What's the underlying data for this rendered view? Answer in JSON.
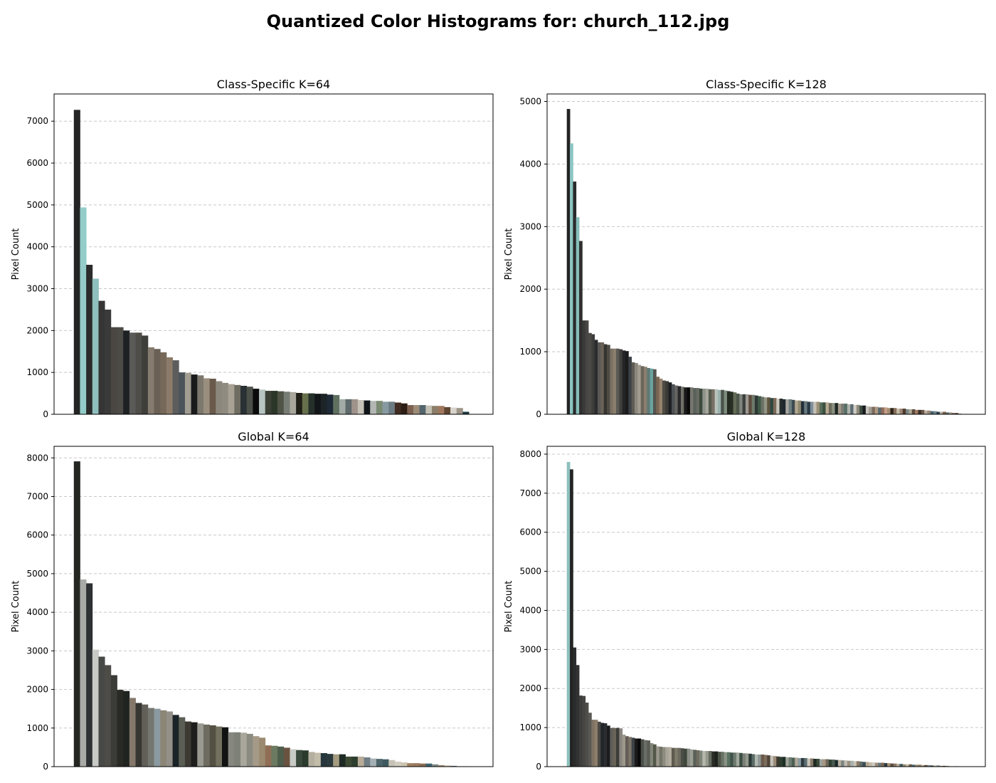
{
  "figure": {
    "title": "Quantized Color Histograms for: church_112.jpg"
  },
  "chart_data": [
    {
      "type": "bar",
      "title": "Class-Specific K=64",
      "ylabel": "Pixel Count",
      "xlabel": "",
      "ylim": [
        0,
        7650
      ],
      "yticks": [
        0,
        1000,
        2000,
        3000,
        4000,
        5000,
        6000,
        7000
      ],
      "grid": "y-dashed",
      "values": [
        7270,
        4940,
        3570,
        3240,
        2710,
        2500,
        2080,
        2080,
        2000,
        1950,
        1950,
        1880,
        1600,
        1560,
        1480,
        1360,
        1290,
        1000,
        990,
        950,
        930,
        860,
        850,
        790,
        750,
        720,
        700,
        680,
        660,
        610,
        590,
        560,
        560,
        550,
        540,
        530,
        510,
        500,
        500,
        490,
        490,
        470,
        460,
        360,
        360,
        360,
        340,
        330,
        320,
        320,
        300,
        300,
        280,
        260,
        220,
        220,
        220,
        210,
        200,
        200,
        170,
        160,
        150,
        60
      ],
      "colors": [
        "#242424",
        "#93ccc9",
        "#2b2b2b",
        "#8fc0bd",
        "#353535",
        "#3a3a3a",
        "#4a4743",
        "#4d4b46",
        "#1e2124",
        "#5a5a58",
        "#4f4d48",
        "#3e3e3b",
        "#857b6e",
        "#6b6055",
        "#76695a",
        "#8c7b68",
        "#5c5d5c",
        "#4c545b",
        "#a29d92",
        "#1a1a1a",
        "#7c786e",
        "#9a8e7e",
        "#6a5a4b",
        "#8c877c",
        "#8f8b80",
        "#a7a294",
        "#6f6c62",
        "#2a3134",
        "#4b5048",
        "#0b0b0b",
        "#b7c4c1",
        "#3b3f36",
        "#2c3628",
        "#4f5447",
        "#777d74",
        "#a9a69c",
        "#212018",
        "#67704c",
        "#26302a",
        "#131618",
        "#1c2428",
        "#1e2a36",
        "#5f7060",
        "#a2aba6",
        "#5f6a6c",
        "#9f938c",
        "#c6c2b8",
        "#0f1418",
        "#b3b7b3",
        "#7b8b73",
        "#879aa1",
        "#6c7b82",
        "#3f2c22",
        "#2c1e16",
        "#7c6050",
        "#9c8c78",
        "#54666c",
        "#c4c0b4",
        "#8c7e6a",
        "#a0785e",
        "#5e4632",
        "#d8d4cc",
        "#9e9588",
        "#1c3a40"
      ]
    },
    {
      "type": "bar",
      "title": "Class-Specific K=128",
      "ylabel": "Pixel Count",
      "xlabel": "",
      "ylim": [
        0,
        5120
      ],
      "yticks": [
        0,
        1000,
        2000,
        3000,
        4000,
        5000
      ],
      "grid": "y-dashed",
      "values": [
        4880,
        4330,
        3720,
        3150,
        2770,
        1500,
        1500,
        1300,
        1280,
        1190,
        1150,
        1150,
        1120,
        1110,
        1050,
        1050,
        1050,
        1040,
        1020,
        1010,
        920,
        830,
        820,
        790,
        770,
        760,
        740,
        730,
        720,
        600,
        570,
        540,
        530,
        510,
        480,
        460,
        450,
        440,
        430,
        430,
        430,
        420,
        420,
        410,
        410,
        410,
        400,
        400,
        400,
        390,
        390,
        380,
        370,
        360,
        350,
        330,
        320,
        320,
        320,
        310,
        310,
        300,
        290,
        280,
        270,
        270,
        260,
        260,
        250,
        250,
        240,
        240,
        240,
        230,
        220,
        220,
        210,
        210,
        200,
        200,
        200,
        200,
        190,
        190,
        190,
        180,
        180,
        180,
        170,
        170,
        170,
        160,
        160,
        150,
        150,
        140,
        140,
        130,
        120,
        120,
        120,
        110,
        110,
        110,
        100,
        100,
        100,
        90,
        90,
        90,
        80,
        80,
        80,
        70,
        70,
        70,
        60,
        60,
        50,
        50,
        40,
        40,
        40,
        30,
        30,
        20,
        20,
        10
      ],
      "colors": [
        "#232323",
        "#8cc6c2",
        "#2a2a2a",
        "#86bdb9",
        "#2f2f2f",
        "#3a3a3a",
        "#474644",
        "#4b4a46",
        "#3d3d3b",
        "#2b2c2e",
        "#5a5855",
        "#6b6257",
        "#36342f",
        "#4e4b45",
        "#7b7163",
        "#8a7e6d",
        "#5b5a56",
        "#413f3b",
        "#232527",
        "#1b1b1b",
        "#3c4146",
        "#5e5b54",
        "#8c877c",
        "#a29c90",
        "#6c655c",
        "#8b7e6d",
        "#5f7a76",
        "#6aa3a0",
        "#55544f",
        "#7a6652",
        "#96846f",
        "#4f4a44",
        "#3a3a36",
        "#1d2022",
        "#4d5154",
        "#646460",
        "#29282a",
        "#707068",
        "#1a1a1a",
        "#0a0a0a",
        "#77776f",
        "#5a615a",
        "#676b64",
        "#3d4a3c",
        "#8c928a",
        "#a6a79c",
        "#565b50",
        "#777065",
        "#bac2bd",
        "#9ab1ad",
        "#4a524a",
        "#7e8c7f",
        "#232a20",
        "#292f24",
        "#646c57",
        "#4d564a",
        "#7f857c",
        "#3c3f3e",
        "#9b9890",
        "#5c4a3c",
        "#6d7a6a",
        "#2e3936",
        "#3f5b46",
        "#6c7266",
        "#929484",
        "#5e5440",
        "#2f4741",
        "#7b6a58",
        "#c9c6be",
        "#262e2c",
        "#1f2830",
        "#a8a69e",
        "#6e7e7e",
        "#3c4c52",
        "#b4a78f",
        "#8c8870",
        "#233039",
        "#687a80",
        "#2a3a44",
        "#7d8e9a",
        "#c5c0b4",
        "#9c9078",
        "#566e5a",
        "#3a5040",
        "#b8aa94",
        "#6b6a5a",
        "#8a9080",
        "#1c2824",
        "#a3988a",
        "#7a7c74",
        "#567068",
        "#b0b4ac",
        "#5c6c74",
        "#d0ccc2",
        "#8e8a7c",
        "#3c4a40",
        "#161c1e",
        "#c8c4bc",
        "#a09c94",
        "#7c6a5e",
        "#b09a84",
        "#5a6a70",
        "#8e6c58",
        "#c4a088",
        "#a48c74",
        "#2c2418",
        "#846e5c",
        "#c6bca8",
        "#9c8474",
        "#4e3a2c",
        "#7a8684",
        "#b0a898",
        "#5c4c40",
        "#a27c64",
        "#3c302a",
        "#6c5646",
        "#b8ac9c",
        "#9a8a7a",
        "#46606a",
        "#70848c",
        "#2a3c46",
        "#b4b0a8",
        "#7c5c48",
        "#5c6a6c",
        "#a0988c",
        "#6a564a",
        "#48362c",
        "#8a7c6c"
      ]
    },
    {
      "type": "bar",
      "title": "Global K=64",
      "ylabel": "Pixel Count",
      "xlabel": "",
      "ylim": [
        0,
        8300
      ],
      "yticks": [
        0,
        1000,
        2000,
        3000,
        4000,
        5000,
        6000,
        7000,
        8000
      ],
      "grid": "y-dashed",
      "values": [
        7910,
        4850,
        4750,
        3030,
        2850,
        2630,
        2370,
        1990,
        1960,
        1780,
        1650,
        1610,
        1520,
        1500,
        1460,
        1430,
        1340,
        1280,
        1170,
        1150,
        1120,
        1090,
        1070,
        1040,
        1020,
        890,
        890,
        880,
        850,
        790,
        750,
        550,
        540,
        520,
        490,
        450,
        430,
        420,
        380,
        360,
        350,
        330,
        320,
        320,
        260,
        260,
        260,
        240,
        210,
        200,
        190,
        170,
        130,
        110,
        90,
        90,
        80,
        80,
        60,
        40,
        30,
        20,
        10,
        10
      ],
      "colors": [
        "#242622",
        "#a7aaa6",
        "#2e3133",
        "#c7cac5",
        "#474946",
        "#4e4c47",
        "#3b3c38",
        "#292a26",
        "#202421",
        "#85786a",
        "#383630",
        "#615f58",
        "#74776f",
        "#8a9aa0",
        "#8c8677",
        "#939089",
        "#1a2428",
        "#5b5e55",
        "#3c3a33",
        "#1e1e1c",
        "#9a9a92",
        "#6e6c60",
        "#545043",
        "#73705f",
        "#111312",
        "#86877f",
        "#7d8178",
        "#a9a69b",
        "#8c8b81",
        "#a59a88",
        "#9b8a70",
        "#8f6e55",
        "#6b7a60",
        "#4e5e4c",
        "#6a5240",
        "#c8cbc6",
        "#3a4a3c",
        "#2a3a2c",
        "#b4b0a0",
        "#c2bda9",
        "#26363c",
        "#2c3a3e",
        "#a49b80",
        "#1e2a24",
        "#3c4a34",
        "#2e3e2e",
        "#b8ac98",
        "#707e86",
        "#a4b0b4",
        "#4c646a",
        "#3e5a60",
        "#c6c3b6",
        "#d0ccc0",
        "#cbc4b0",
        "#a08060",
        "#9a7a5e",
        "#8c6c50",
        "#3e6470",
        "#7c8a84",
        "#9c8c74",
        "#c0b8a4",
        "#5c6a6e",
        "#8e9c9a",
        "#b2a890"
      ]
    },
    {
      "type": "bar",
      "title": "Global K=128",
      "ylabel": "Pixel Count",
      "xlabel": "",
      "ylim": [
        0,
        8200
      ],
      "yticks": [
        0,
        1000,
        2000,
        3000,
        4000,
        5000,
        6000,
        7000,
        8000
      ],
      "grid": "y-dashed",
      "values": [
        7800,
        7610,
        3050,
        2600,
        1820,
        1810,
        1640,
        1380,
        1200,
        1200,
        1150,
        1120,
        1110,
        1050,
        990,
        990,
        990,
        980,
        820,
        780,
        760,
        740,
        720,
        720,
        700,
        680,
        670,
        600,
        570,
        520,
        510,
        500,
        500,
        500,
        480,
        480,
        480,
        470,
        460,
        460,
        440,
        430,
        420,
        410,
        400,
        400,
        400,
        390,
        390,
        380,
        380,
        370,
        370,
        360,
        360,
        360,
        350,
        340,
        340,
        330,
        320,
        310,
        310,
        310,
        300,
        290,
        280,
        270,
        260,
        250,
        250,
        240,
        240,
        230,
        230,
        220,
        220,
        220,
        210,
        210,
        200,
        200,
        190,
        190,
        190,
        180,
        180,
        170,
        170,
        160,
        160,
        150,
        150,
        140,
        140,
        130,
        120,
        120,
        110,
        110,
        100,
        100,
        100,
        90,
        90,
        80,
        80,
        70,
        70,
        60,
        60,
        60,
        50,
        50,
        50,
        40,
        40,
        40,
        30,
        30,
        30,
        20,
        20,
        20,
        10,
        10,
        10,
        5
      ],
      "colors": [
        "#8cc0bc",
        "#242424",
        "#2c2c2c",
        "#323232",
        "#3e3e3c",
        "#474543",
        "#4f4e4a",
        "#5a5955",
        "#7d7263",
        "#8c7e6b",
        "#4a4843",
        "#20252a",
        "#2c2d30",
        "#1b1c1e",
        "#5f5d58",
        "#6a6458",
        "#3c3c38",
        "#8a8580",
        "#9e988c",
        "#645e55",
        "#7c7468",
        "#3d4346",
        "#1a1a1a",
        "#0a0a0a",
        "#4c504a",
        "#6a6e68",
        "#585c52",
        "#80857a",
        "#535748",
        "#9a978c",
        "#727468",
        "#8d8a7e",
        "#a8a49a",
        "#b2ad9e",
        "#5e5a4e",
        "#7e7a6a",
        "#6c6a5e",
        "#4a4e46",
        "#3e463c",
        "#8a8e86",
        "#9ca094",
        "#5a6058",
        "#706c60",
        "#7e847a",
        "#b6b8ae",
        "#959a8c",
        "#646a60",
        "#2a2c26",
        "#1e221c",
        "#4e5448",
        "#6a7266",
        "#8a9284",
        "#5a7262",
        "#40544a",
        "#6e7a70",
        "#a2a89c",
        "#3c4e44",
        "#7a8078",
        "#96998e",
        "#2a3a36",
        "#5a6a66",
        "#b2b8b0",
        "#8e9694",
        "#6a5a4a",
        "#7c6c5c",
        "#504438",
        "#c4c2b8",
        "#9c8c7a",
        "#3e3a30",
        "#2c3e30",
        "#1e2e26",
        "#a0a498",
        "#6e7c74",
        "#4e6056",
        "#b0a898",
        "#8a9aa0",
        "#2e3c40",
        "#5c6e72",
        "#c8c4b8",
        "#86786a",
        "#1c2a22",
        "#3a4a3a",
        "#9aa2a0",
        "#a89680",
        "#6e685c",
        "#2e4032",
        "#4a5c52",
        "#1a2a2c",
        "#b8b0a0",
        "#7c8480",
        "#c0bcb2",
        "#9a9080",
        "#a8b0ac",
        "#c6c2b6",
        "#8a7a68",
        "#5e6c68",
        "#3a4c56",
        "#b4a890",
        "#c4b8a4",
        "#d0ccc4",
        "#9c8c7c",
        "#6a7a80",
        "#7c6854",
        "#2c3a44",
        "#a89478",
        "#5a4c40",
        "#8c7866",
        "#b8ac98",
        "#3c5a64",
        "#9a8a72",
        "#c6bcaa",
        "#6c5c4c",
        "#4c6a74",
        "#a08c74",
        "#8a7c6a",
        "#b49e84",
        "#5c4a3a",
        "#7a8a90",
        "#3c4850",
        "#c2b49e",
        "#6a7c84",
        "#9e8a70",
        "#4a3a2e",
        "#b0a08a",
        "#8e7c64",
        "#5e6e76",
        "#3e4e58",
        "#a29076"
      ]
    }
  ]
}
